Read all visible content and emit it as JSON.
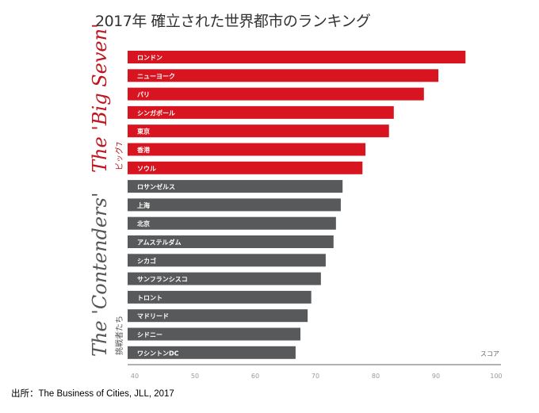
{
  "chart_data": {
    "type": "bar",
    "orientation": "horizontal",
    "title": "2017年 確立された世界都市のランキング",
    "xlabel": "スコア",
    "xlim": [
      40,
      100
    ],
    "xticks": [
      40,
      50,
      60,
      70,
      80,
      90,
      100
    ],
    "grid": false,
    "categories": [
      "ロンドン",
      "ニューヨーク",
      "パリ",
      "シンガポール",
      "東京",
      "香港",
      "ソウル",
      "ロサンゼルス",
      "上海",
      "北京",
      "アムステルダム",
      "シカゴ",
      "サンフランシスコ",
      "トロント",
      "マドリード",
      "シドニー",
      "ワシントンDC"
    ],
    "values": [
      94.9,
      90.4,
      88.0,
      83.0,
      82.2,
      78.3,
      77.8,
      74.5,
      74.2,
      73.4,
      73.0,
      71.7,
      70.9,
      69.3,
      68.7,
      67.5,
      66.7
    ],
    "groups": [
      {
        "label": "The 'Big Seven'",
        "sublabel": "ビッグ7",
        "count": 7,
        "color": "#d7141f"
      },
      {
        "label": "The 'Contenders'",
        "sublabel": "挑戦者たち",
        "count": 10,
        "color": "#58595b"
      }
    ]
  },
  "source": "出所：The Business of Cities, JLL, 2017"
}
